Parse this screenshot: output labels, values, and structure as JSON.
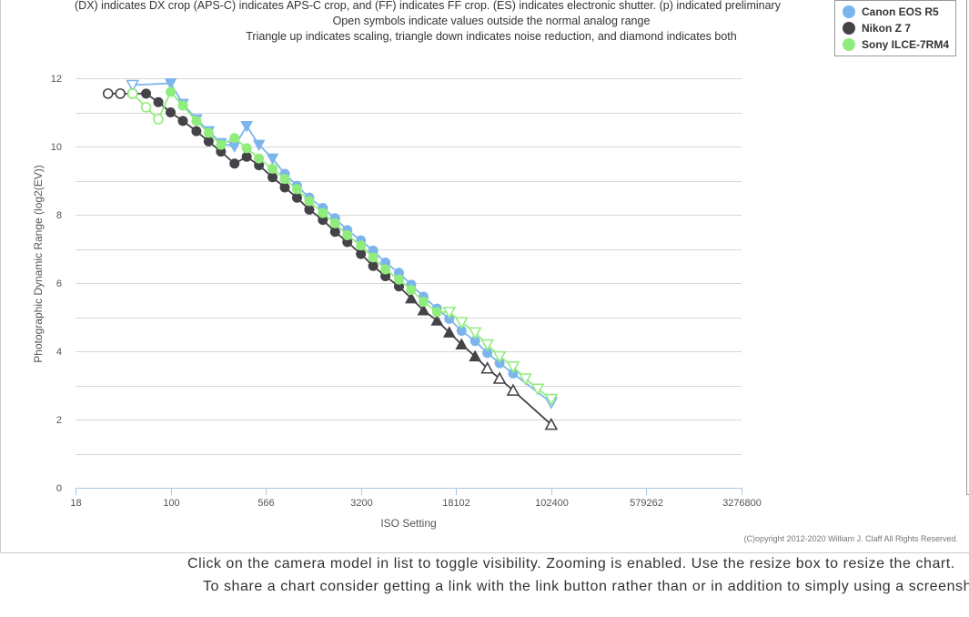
{
  "notes": [
    "(DX) indicates DX crop (APS-C) indicates APS-C crop, and (FF) indicates FF crop. (ES) indicates electronic shutter. (p) indicated preliminary",
    "Open symbols indicate values outside the normal analog range",
    "Triangle up indicates scaling, triangle down indicates noise reduction, and diamond indicates both"
  ],
  "copyright": "(C)opyright 2012-2020 William J. Claff All Rights Reserved.",
  "footer": {
    "line1": "Click on the camera model in list to toggle visibility. Zooming is enabled. Use the resize box to resize the chart.",
    "line2": "To share a chart consider getting a link with the link button rather than or in addition to simply using a screenshot."
  },
  "chart_data": {
    "type": "scatter",
    "xlabel": "ISO Setting",
    "ylabel": "Photographic Dynamic Range (log2(EV))",
    "x_scale": "log2",
    "xlim": [
      18,
      3276800
    ],
    "ylim": [
      0,
      12
    ],
    "x_ticks": [
      "18",
      "100",
      "566",
      "3200",
      "18102",
      "102400",
      "579262",
      "3276800"
    ],
    "x_tick_values": [
      17.7,
      100,
      566,
      3200,
      18102,
      102400,
      579262,
      3276800
    ],
    "y_ticks": [
      "0",
      "2",
      "4",
      "6",
      "8",
      "10",
      "12"
    ],
    "y_tick_values": [
      0,
      2,
      4,
      6,
      8,
      10,
      12
    ],
    "grid": true,
    "legend_position": "top-right",
    "series": [
      {
        "name": "Canon EOS R5",
        "color": "#7cb5ec",
        "points": [
          {
            "x": 50,
            "y": 11.8,
            "m": "tri-down-open"
          },
          {
            "x": 100,
            "y": 11.85,
            "m": "tri-down"
          },
          {
            "x": 125,
            "y": 11.25,
            "m": "tri-down"
          },
          {
            "x": 160,
            "y": 10.8,
            "m": "tri-down"
          },
          {
            "x": 200,
            "y": 10.45,
            "m": "tri-down"
          },
          {
            "x": 250,
            "y": 10.1,
            "m": "tri-down"
          },
          {
            "x": 320,
            "y": 10.0,
            "m": "tri-down"
          },
          {
            "x": 400,
            "y": 10.6,
            "m": "tri-down"
          },
          {
            "x": 500,
            "y": 10.05,
            "m": "tri-down"
          },
          {
            "x": 640,
            "y": 9.65,
            "m": "tri-down"
          },
          {
            "x": 800,
            "y": 9.2,
            "m": "circle"
          },
          {
            "x": 1000,
            "y": 8.85,
            "m": "circle"
          },
          {
            "x": 1250,
            "y": 8.5,
            "m": "circle"
          },
          {
            "x": 1600,
            "y": 8.2,
            "m": "circle"
          },
          {
            "x": 2000,
            "y": 7.9,
            "m": "circle"
          },
          {
            "x": 2500,
            "y": 7.55,
            "m": "circle"
          },
          {
            "x": 3200,
            "y": 7.25,
            "m": "circle"
          },
          {
            "x": 4000,
            "y": 6.95,
            "m": "circle"
          },
          {
            "x": 5000,
            "y": 6.6,
            "m": "circle"
          },
          {
            "x": 6400,
            "y": 6.3,
            "m": "circle"
          },
          {
            "x": 8000,
            "y": 5.95,
            "m": "circle"
          },
          {
            "x": 10000,
            "y": 5.6,
            "m": "circle"
          },
          {
            "x": 12800,
            "y": 5.25,
            "m": "circle"
          },
          {
            "x": 16000,
            "y": 4.95,
            "m": "circle"
          },
          {
            "x": 20000,
            "y": 4.6,
            "m": "circle"
          },
          {
            "x": 25600,
            "y": 4.3,
            "m": "circle"
          },
          {
            "x": 32000,
            "y": 3.95,
            "m": "circle"
          },
          {
            "x": 40000,
            "y": 3.65,
            "m": "circle"
          },
          {
            "x": 51200,
            "y": 3.35,
            "m": "circle"
          },
          {
            "x": 102400,
            "y": 2.5,
            "m": "tri-down-open"
          }
        ]
      },
      {
        "name": "Nikon Z 7",
        "color": "#434348",
        "points": [
          {
            "x": 32,
            "y": 11.55,
            "m": "circle-open"
          },
          {
            "x": 40,
            "y": 11.55,
            "m": "circle-open"
          },
          {
            "x": 50,
            "y": 11.55,
            "m": "circle-open"
          },
          {
            "x": 64,
            "y": 11.55,
            "m": "circle"
          },
          {
            "x": 80,
            "y": 11.3,
            "m": "circle"
          },
          {
            "x": 100,
            "y": 11.0,
            "m": "circle"
          },
          {
            "x": 125,
            "y": 10.75,
            "m": "circle"
          },
          {
            "x": 160,
            "y": 10.45,
            "m": "circle"
          },
          {
            "x": 200,
            "y": 10.15,
            "m": "circle"
          },
          {
            "x": 250,
            "y": 9.85,
            "m": "circle"
          },
          {
            "x": 320,
            "y": 9.5,
            "m": "circle"
          },
          {
            "x": 400,
            "y": 9.7,
            "m": "circle"
          },
          {
            "x": 500,
            "y": 9.45,
            "m": "circle"
          },
          {
            "x": 640,
            "y": 9.1,
            "m": "circle"
          },
          {
            "x": 800,
            "y": 8.8,
            "m": "circle"
          },
          {
            "x": 1000,
            "y": 8.5,
            "m": "circle"
          },
          {
            "x": 1250,
            "y": 8.15,
            "m": "circle"
          },
          {
            "x": 1600,
            "y": 7.85,
            "m": "circle"
          },
          {
            "x": 2000,
            "y": 7.5,
            "m": "circle"
          },
          {
            "x": 2500,
            "y": 7.2,
            "m": "circle"
          },
          {
            "x": 3200,
            "y": 6.85,
            "m": "circle"
          },
          {
            "x": 4000,
            "y": 6.5,
            "m": "circle"
          },
          {
            "x": 5000,
            "y": 6.2,
            "m": "circle"
          },
          {
            "x": 6400,
            "y": 5.9,
            "m": "circle"
          },
          {
            "x": 8000,
            "y": 5.55,
            "m": "tri-up"
          },
          {
            "x": 10000,
            "y": 5.2,
            "m": "tri-up"
          },
          {
            "x": 12800,
            "y": 4.9,
            "m": "tri-up"
          },
          {
            "x": 16000,
            "y": 4.55,
            "m": "tri-up"
          },
          {
            "x": 20000,
            "y": 4.2,
            "m": "tri-up"
          },
          {
            "x": 25600,
            "y": 3.85,
            "m": "tri-up"
          },
          {
            "x": 32000,
            "y": 3.5,
            "m": "tri-up-open"
          },
          {
            "x": 40000,
            "y": 3.2,
            "m": "tri-up-open"
          },
          {
            "x": 51200,
            "y": 2.85,
            "m": "tri-up-open"
          },
          {
            "x": 102400,
            "y": 1.85,
            "m": "tri-up-open"
          }
        ]
      },
      {
        "name": "Sony ILCE-7RM4",
        "color": "#90ed7d",
        "points": [
          {
            "x": 50,
            "y": 11.55,
            "m": "circle-open"
          },
          {
            "x": 64,
            "y": 11.15,
            "m": "circle-open"
          },
          {
            "x": 80,
            "y": 10.8,
            "m": "circle-open"
          },
          {
            "x": 100,
            "y": 11.6,
            "m": "circle"
          },
          {
            "x": 125,
            "y": 11.2,
            "m": "circle"
          },
          {
            "x": 160,
            "y": 10.75,
            "m": "circle"
          },
          {
            "x": 200,
            "y": 10.4,
            "m": "circle"
          },
          {
            "x": 250,
            "y": 10.05,
            "m": "circle"
          },
          {
            "x": 320,
            "y": 10.25,
            "m": "circle"
          },
          {
            "x": 400,
            "y": 9.95,
            "m": "circle"
          },
          {
            "x": 500,
            "y": 9.65,
            "m": "circle"
          },
          {
            "x": 640,
            "y": 9.35,
            "m": "circle"
          },
          {
            "x": 800,
            "y": 9.05,
            "m": "circle"
          },
          {
            "x": 1000,
            "y": 8.75,
            "m": "circle"
          },
          {
            "x": 1250,
            "y": 8.4,
            "m": "circle"
          },
          {
            "x": 1600,
            "y": 8.05,
            "m": "circle"
          },
          {
            "x": 2000,
            "y": 7.75,
            "m": "circle"
          },
          {
            "x": 2500,
            "y": 7.4,
            "m": "circle"
          },
          {
            "x": 3200,
            "y": 7.1,
            "m": "circle"
          },
          {
            "x": 4000,
            "y": 6.75,
            "m": "circle"
          },
          {
            "x": 5000,
            "y": 6.4,
            "m": "circle"
          },
          {
            "x": 6400,
            "y": 6.1,
            "m": "circle"
          },
          {
            "x": 8000,
            "y": 5.8,
            "m": "circle"
          },
          {
            "x": 10000,
            "y": 5.45,
            "m": "circle"
          },
          {
            "x": 12800,
            "y": 5.15,
            "m": "circle"
          },
          {
            "x": 16000,
            "y": 5.15,
            "m": "tri-down-open"
          },
          {
            "x": 20000,
            "y": 4.85,
            "m": "tri-down-open"
          },
          {
            "x": 25600,
            "y": 4.55,
            "m": "tri-down-open"
          },
          {
            "x": 32000,
            "y": 4.2,
            "m": "tri-down-open"
          },
          {
            "x": 40000,
            "y": 3.85,
            "m": "tri-down-open"
          },
          {
            "x": 51200,
            "y": 3.55,
            "m": "tri-down-open"
          },
          {
            "x": 64000,
            "y": 3.2,
            "m": "tri-down-open"
          },
          {
            "x": 80000,
            "y": 2.9,
            "m": "tri-down-open"
          },
          {
            "x": 102400,
            "y": 2.6,
            "m": "tri-down-open"
          }
        ]
      }
    ]
  }
}
